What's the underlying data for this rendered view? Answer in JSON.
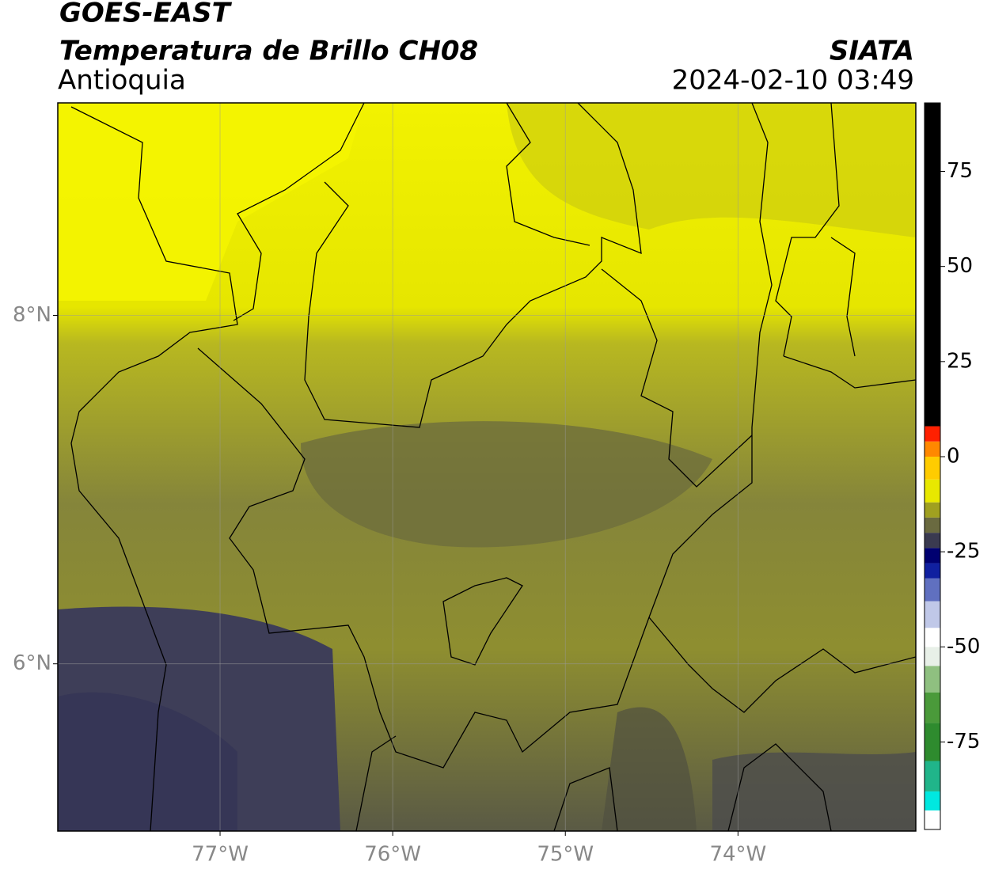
{
  "map": {
    "title": "GOES-EAST",
    "subtitle": "Temperatura de Brillo CH08",
    "region": "Antioquia",
    "source": "SIATA",
    "datetime": "2024-02-10 03:49",
    "xlim": [
      -77.94,
      -72.97
    ],
    "ylim": [
      5.04,
      9.22
    ],
    "xticks": [
      {
        "value": -77,
        "label": "77°W"
      },
      {
        "value": -76,
        "label": "76°W"
      },
      {
        "value": -75,
        "label": "75°W"
      },
      {
        "value": -74,
        "label": "74°W"
      }
    ],
    "yticks": [
      {
        "value": 8,
        "label": "8°N"
      },
      {
        "value": 6,
        "label": "6°N"
      }
    ],
    "grid": true,
    "colorbar": {
      "bounds": [
        -98,
        -93,
        -88,
        -80,
        -70,
        -62,
        -55,
        -50,
        -45,
        -38,
        -32,
        -28,
        -24,
        -20,
        -16,
        -12,
        -6,
        0,
        4,
        8,
        93
      ],
      "colors": [
        "#ffffff",
        "#00e8e0",
        "#20b58a",
        "#2e8b2e",
        "#4a9a3a",
        "#8fc080",
        "#e8f0e8",
        "#ffffff",
        "#c0c8e8",
        "#6070c0",
        "#1020a0",
        "#000070",
        "#3a3a50",
        "#6a6a40",
        "#a0a020",
        "#e8e800",
        "#ffcc00",
        "#ff8800",
        "#ff2000",
        "#000000"
      ],
      "ticks": [
        75,
        50,
        25,
        0,
        -25,
        -50,
        -75
      ]
    }
  }
}
